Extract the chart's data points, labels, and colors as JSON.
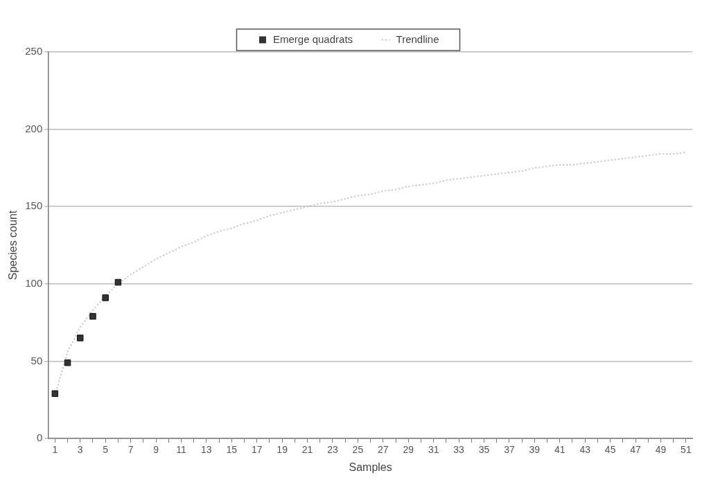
{
  "chart_data": {
    "type": "scatter",
    "xlabel": "Samples",
    "ylabel": "Species count",
    "x": [
      1,
      2,
      3,
      4,
      5,
      6,
      7,
      8,
      9,
      10,
      11,
      12,
      13,
      14,
      15,
      16,
      17,
      18,
      19,
      20,
      21,
      22,
      23,
      24,
      25,
      26,
      27,
      28,
      29,
      30,
      31,
      32,
      33,
      34,
      35,
      36,
      37,
      38,
      39,
      40,
      41,
      42,
      43,
      44,
      45,
      46,
      47,
      48,
      49,
      50,
      51
    ],
    "series": [
      {
        "name": "Emerge quadrats",
        "type": "scatter",
        "color": "#333333",
        "marker": "square",
        "x": [
          1,
          2,
          3,
          4,
          5,
          6
        ],
        "values": [
          29,
          49,
          65,
          79,
          91,
          101
        ]
      },
      {
        "name": "Trendline",
        "type": "line",
        "color": "#c4c4c4",
        "line_style": "dotted",
        "marker": "none",
        "values": [
          28,
          56,
          72,
          83,
          92,
          100,
          106,
          111,
          116,
          120,
          124,
          127,
          131,
          134,
          136,
          139,
          141,
          144,
          146,
          148,
          150,
          152,
          153,
          155,
          157,
          158,
          160,
          161,
          163,
          164,
          165,
          167,
          168,
          169,
          170,
          171,
          172,
          173,
          175,
          176,
          177,
          177,
          178,
          179,
          180,
          181,
          182,
          183,
          184,
          184,
          185
        ]
      }
    ],
    "xlim": [
      0.5,
      51.5
    ],
    "xticks": [
      1,
      {
        "value": 2,
        "label": null
      },
      3,
      {
        "value": 4,
        "label": null
      },
      5,
      {
        "value": 6,
        "label": null
      },
      7,
      {
        "value": 8,
        "label": null
      },
      9,
      {
        "value": 10,
        "label": null
      },
      11,
      {
        "value": 12,
        "label": null
      },
      13,
      {
        "value": 14,
        "label": null
      },
      15,
      {
        "value": 16,
        "label": null
      },
      17,
      {
        "value": 18,
        "label": null
      },
      19,
      {
        "value": 20,
        "label": null
      },
      21,
      {
        "value": 22,
        "label": null
      },
      23,
      {
        "value": 24,
        "label": null
      },
      25,
      {
        "value": 26,
        "label": null
      },
      27,
      {
        "value": 28,
        "label": null
      },
      29,
      {
        "value": 30,
        "label": null
      },
      31,
      {
        "value": 32,
        "label": null
      },
      33,
      {
        "value": 34,
        "label": null
      },
      35,
      {
        "value": 36,
        "label": null
      },
      37,
      {
        "value": 38,
        "label": null
      },
      39,
      {
        "value": 40,
        "label": null
      },
      41,
      {
        "value": 42,
        "label": null
      },
      43,
      {
        "value": 44,
        "label": null
      },
      45,
      {
        "value": 46,
        "label": null
      },
      47,
      {
        "value": 48,
        "label": null
      },
      49,
      {
        "value": 50,
        "label": null
      },
      51
    ],
    "ylim": [
      0,
      250
    ],
    "yticks": [
      0,
      50,
      100,
      150,
      200,
      250
    ],
    "grid": "y",
    "legend": "top"
  }
}
